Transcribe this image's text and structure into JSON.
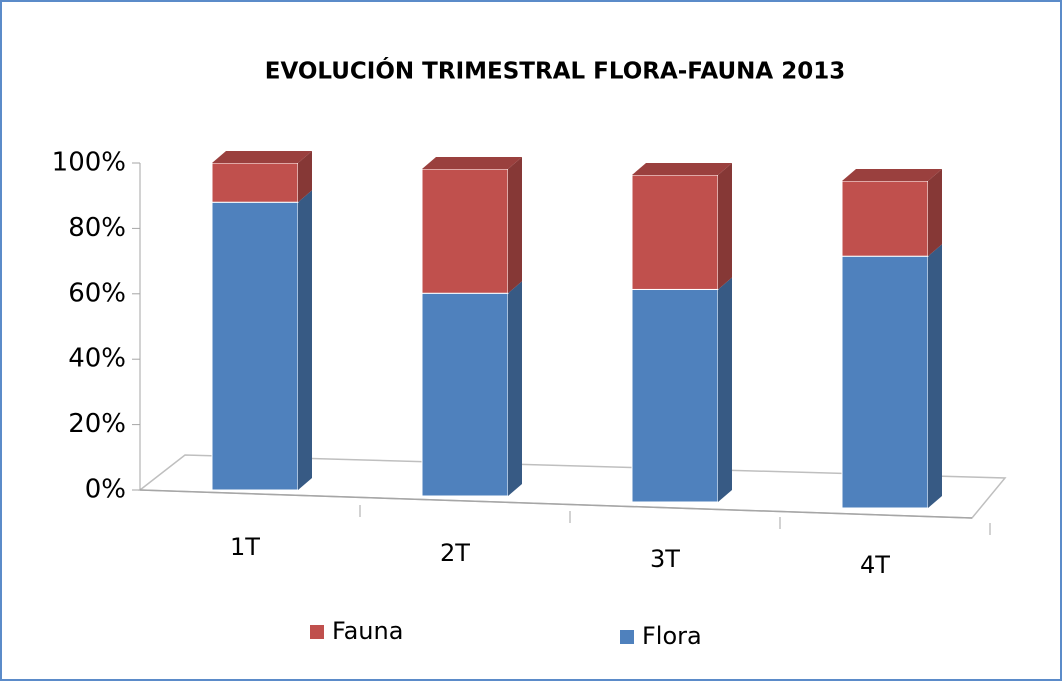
{
  "chart_data": {
    "type": "bar3d-stacked",
    "title": "EVOLUCIÓN TRIMESTRAL FLORA-FAUNA 2013",
    "categories": [
      "1T",
      "2T",
      "3T",
      "4T"
    ],
    "series": [
      {
        "name": "Flora",
        "color": "#4f81bd",
        "values": [
          88,
          62,
          65,
          77
        ]
      },
      {
        "name": "Fauna",
        "color": "#c0504d",
        "values": [
          12,
          38,
          35,
          23
        ]
      }
    ],
    "ylim": [
      0,
      100
    ],
    "yticks": [
      {
        "value": 0,
        "label": "0%"
      },
      {
        "value": 20,
        "label": "20%"
      },
      {
        "value": 40,
        "label": "40%"
      },
      {
        "value": 60,
        "label": "60%"
      },
      {
        "value": 80,
        "label": "80%"
      },
      {
        "value": 100,
        "label": "100%"
      }
    ],
    "grid": false
  }
}
